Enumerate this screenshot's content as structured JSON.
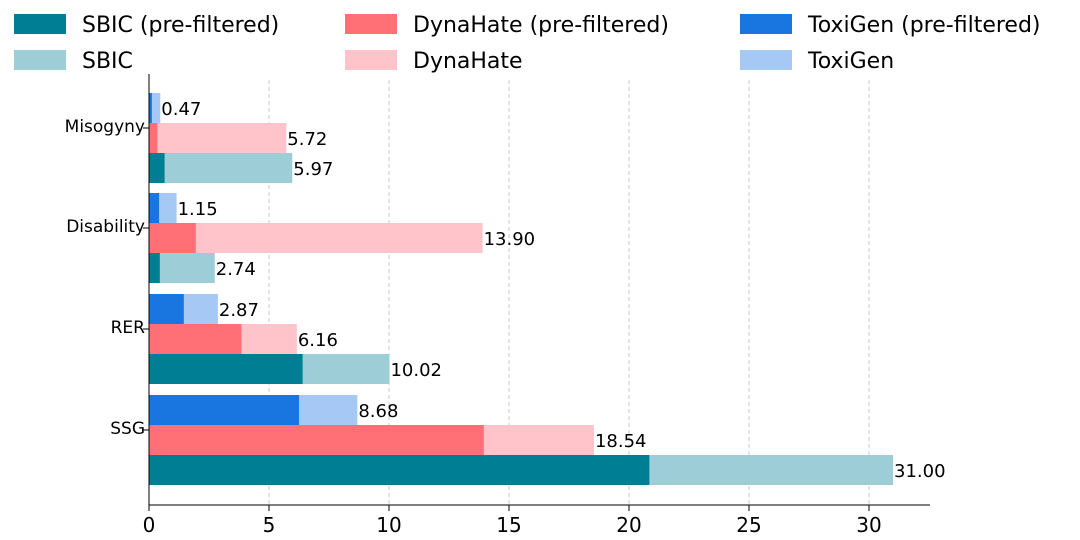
{
  "chart_data": {
    "type": "bar",
    "orientation": "horizontal",
    "stacked_overlay": true,
    "categories": [
      "Misogyny",
      "Disability",
      "RER",
      "SSG"
    ],
    "xlim": [
      0,
      32.5
    ],
    "xticks": [
      "0",
      "5",
      "10",
      "15",
      "20",
      "25",
      "30"
    ],
    "xtick_values": [
      0,
      5,
      10,
      15,
      20,
      25,
      30
    ],
    "grid": "x-dashed",
    "legend_position": "top",
    "series": [
      {
        "name": "SBIC",
        "prefiltered_name": "SBIC (pre-filtered)",
        "color_full": "#9dcdd6",
        "color_prefiltered": "#007f94",
        "values": [
          5.97,
          2.74,
          10.02,
          31.0
        ],
        "prefiltered_values": [
          0.65,
          0.45,
          6.4,
          20.85
        ],
        "labels": [
          "5.97",
          "2.74",
          "10.02",
          "31.00"
        ]
      },
      {
        "name": "DynaHate",
        "prefiltered_name": "DynaHate (pre-filtered)",
        "color_full": "#ffc4c9",
        "color_prefiltered": "#ff6f75",
        "values": [
          5.72,
          13.9,
          6.16,
          18.54
        ],
        "prefiltered_values": [
          0.35,
          1.95,
          3.85,
          13.95
        ],
        "labels": [
          "5.72",
          "13.90",
          "6.16",
          "18.54"
        ]
      },
      {
        "name": "ToxiGen",
        "prefiltered_name": "ToxiGen (pre-filtered)",
        "color_full": "#a5c8f5",
        "color_prefiltered": "#1976e0",
        "values": [
          0.47,
          1.15,
          2.87,
          8.68
        ],
        "prefiltered_values": [
          0.12,
          0.42,
          1.45,
          6.25
        ],
        "labels": [
          "0.47",
          "1.15",
          "2.87",
          "8.68"
        ]
      }
    ]
  },
  "legend": {
    "items": [
      {
        "label": "SBIC (pre-filtered)",
        "color": "#007f94"
      },
      {
        "label": "DynaHate (pre-filtered)",
        "color": "#ff6f75"
      },
      {
        "label": "ToxiGen (pre-filtered)",
        "color": "#1976e0"
      },
      {
        "label": "SBIC",
        "color": "#9dcdd6"
      },
      {
        "label": "DynaHate",
        "color": "#ffc4c9"
      },
      {
        "label": "ToxiGen",
        "color": "#a5c8f5"
      }
    ]
  }
}
